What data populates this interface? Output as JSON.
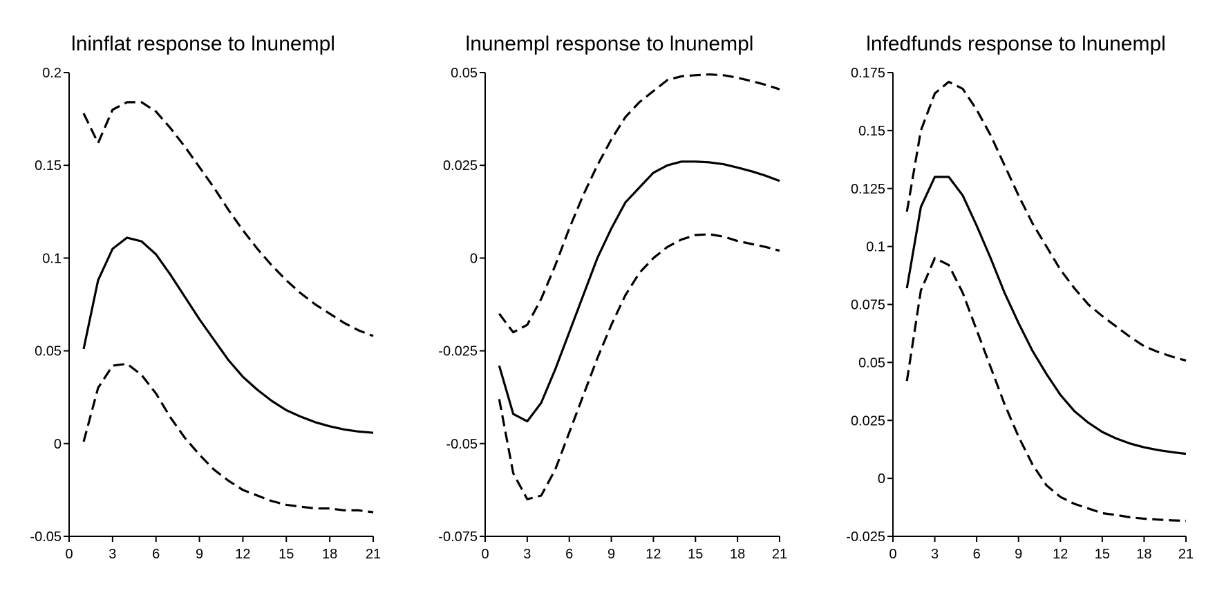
{
  "chart_data": [
    {
      "type": "line",
      "title": "lninflat response to lnunempl",
      "xlim": [
        0,
        21
      ],
      "ylim": [
        -0.05,
        0.2
      ],
      "xticks": [
        0,
        3,
        6,
        9,
        12,
        15,
        18,
        21
      ],
      "yticks": [
        -0.05,
        0,
        0.05,
        0.1,
        0.15,
        0.2
      ],
      "ytick_labels": [
        "-0.05",
        "0",
        "0.05",
        "0.1",
        "0.15",
        "0.2"
      ],
      "grid": false,
      "x": [
        1,
        2,
        3,
        4,
        5,
        6,
        7,
        8,
        9,
        10,
        11,
        12,
        13,
        14,
        15,
        16,
        17,
        18,
        19,
        20,
        21
      ],
      "series": [
        {
          "style": "solid",
          "values": [
            0.051,
            0.088,
            0.105,
            0.111,
            0.109,
            0.102,
            0.091,
            0.079,
            0.067,
            0.056,
            0.045,
            0.036,
            0.029,
            0.023,
            0.018,
            0.0145,
            0.0115,
            0.0093,
            0.0076,
            0.0065,
            0.0058
          ]
        },
        {
          "style": "dashed",
          "values": [
            0.178,
            0.162,
            0.18,
            0.184,
            0.184,
            0.179,
            0.17,
            0.16,
            0.149,
            0.138,
            0.126,
            0.115,
            0.105,
            0.096,
            0.088,
            0.081,
            0.075,
            0.07,
            0.065,
            0.061,
            0.058
          ]
        },
        {
          "style": "dashed",
          "values": [
            0.001,
            0.03,
            0.042,
            0.043,
            0.037,
            0.027,
            0.014,
            0.003,
            -0.006,
            -0.014,
            -0.02,
            -0.025,
            -0.028,
            -0.031,
            -0.033,
            -0.034,
            -0.035,
            -0.035,
            -0.036,
            -0.036,
            -0.037
          ]
        }
      ]
    },
    {
      "type": "line",
      "title": "lnunempl response to lnunempl",
      "xlim": [
        0,
        21
      ],
      "ylim": [
        -0.075,
        0.05
      ],
      "xticks": [
        0,
        3,
        6,
        9,
        12,
        15,
        18,
        21
      ],
      "yticks": [
        -0.075,
        -0.05,
        -0.025,
        0,
        0.025,
        0.05
      ],
      "ytick_labels": [
        "-0.075",
        "-0.05",
        "-0.025",
        "0",
        "0.025",
        "0.05"
      ],
      "grid": false,
      "x": [
        1,
        2,
        3,
        4,
        5,
        6,
        7,
        8,
        9,
        10,
        11,
        12,
        13,
        14,
        15,
        16,
        17,
        18,
        19,
        20,
        21
      ],
      "series": [
        {
          "style": "solid",
          "values": [
            -0.029,
            -0.042,
            -0.044,
            -0.039,
            -0.03,
            -0.02,
            -0.01,
            0.0,
            0.008,
            0.015,
            0.019,
            0.023,
            0.025,
            0.026,
            0.026,
            0.0258,
            0.0253,
            0.0244,
            0.0234,
            0.0222,
            0.0208
          ]
        },
        {
          "style": "dashed",
          "values": [
            -0.015,
            -0.02,
            -0.018,
            -0.011,
            -0.002,
            0.008,
            0.017,
            0.025,
            0.032,
            0.038,
            0.042,
            0.045,
            0.048,
            0.049,
            0.0493,
            0.0495,
            0.0493,
            0.0486,
            0.0477,
            0.0467,
            0.0455
          ]
        },
        {
          "style": "dashed",
          "values": [
            -0.038,
            -0.058,
            -0.065,
            -0.064,
            -0.057,
            -0.047,
            -0.037,
            -0.027,
            -0.018,
            -0.01,
            -0.004,
            0.0,
            0.003,
            0.005,
            0.0062,
            0.0064,
            0.0058,
            0.0046,
            0.0038,
            0.003,
            0.002
          ]
        }
      ]
    },
    {
      "type": "line",
      "title": "lnfedfunds response to lnunempl",
      "xlim": [
        0,
        21
      ],
      "ylim": [
        -0.025,
        0.175
      ],
      "xticks": [
        0,
        3,
        6,
        9,
        12,
        15,
        18,
        21
      ],
      "yticks": [
        -0.025,
        0,
        0.025,
        0.05,
        0.075,
        0.1,
        0.125,
        0.15,
        0.175
      ],
      "ytick_labels": [
        "-0.025",
        "0",
        "0.025",
        "0.05",
        "0.075",
        "0.1",
        "0.125",
        "0.15",
        "0.175"
      ],
      "grid": false,
      "x": [
        1,
        2,
        3,
        4,
        5,
        6,
        7,
        8,
        9,
        10,
        11,
        12,
        13,
        14,
        15,
        16,
        17,
        18,
        19,
        20,
        21
      ],
      "series": [
        {
          "style": "solid",
          "values": [
            0.082,
            0.117,
            0.13,
            0.13,
            0.122,
            0.109,
            0.095,
            0.08,
            0.067,
            0.055,
            0.045,
            0.036,
            0.029,
            0.024,
            0.02,
            0.0172,
            0.015,
            0.0134,
            0.0122,
            0.0113,
            0.0106
          ]
        },
        {
          "style": "dashed",
          "values": [
            0.115,
            0.15,
            0.166,
            0.171,
            0.168,
            0.159,
            0.148,
            0.135,
            0.122,
            0.11,
            0.1,
            0.09,
            0.082,
            0.075,
            0.07,
            0.0655,
            0.061,
            0.057,
            0.0545,
            0.0525,
            0.0508
          ]
        },
        {
          "style": "dashed",
          "values": [
            0.042,
            0.081,
            0.095,
            0.092,
            0.08,
            0.064,
            0.048,
            0.032,
            0.018,
            0.006,
            -0.003,
            -0.008,
            -0.011,
            -0.013,
            -0.015,
            -0.0158,
            -0.0168,
            -0.0174,
            -0.0178,
            -0.0181,
            -0.0183
          ]
        }
      ]
    }
  ]
}
